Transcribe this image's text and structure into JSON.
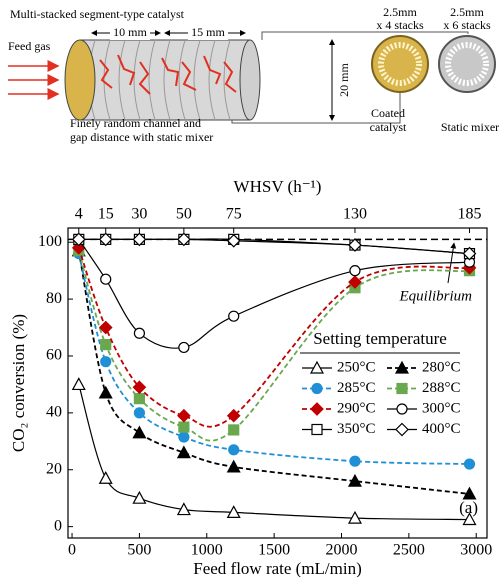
{
  "schematic": {
    "title": "Multi-stacked segment-type catalyst",
    "feed_gas": "Feed gas",
    "dim_10": "10 mm",
    "dim_15": "15 mm",
    "dim_20": "20 mm",
    "caption": [
      "Finely random channel and",
      "gap distance with static mixer"
    ],
    "coated": {
      "size": "2.5mm",
      "stacks": "x 4 stacks",
      "label": [
        "Coated",
        "catalyst"
      ]
    },
    "mixer": {
      "size": "2.5mm",
      "stacks": "x 6 stacks",
      "label": "Static mixer"
    }
  },
  "chart_data": {
    "type": "line",
    "x_label": "Feed flow rate (mL/min)",
    "y_label": "CO₂ conversion (%)",
    "x2_label": "WHSV (h⁻¹)",
    "legend_title": "Setting temperature",
    "annotation": "(a)",
    "equilibrium": {
      "label": "Equilibrium",
      "value": 101
    },
    "x": [
      50,
      250,
      500,
      830,
      1200,
      2100,
      2950
    ],
    "xlim": [
      -30,
      3080
    ],
    "xticks": [
      0,
      500,
      1000,
      1500,
      2000,
      2500,
      3000
    ],
    "x2ticks": [
      {
        "value": 50,
        "label": "4"
      },
      {
        "value": 250,
        "label": "15"
      },
      {
        "value": 500,
        "label": "30"
      },
      {
        "value": 830,
        "label": "50"
      },
      {
        "value": 1200,
        "label": "75"
      },
      {
        "value": 2100,
        "label": "130"
      },
      {
        "value": 2950,
        "label": "185"
      }
    ],
    "ylim": [
      -4,
      105
    ],
    "yticks": [
      0,
      20,
      40,
      60,
      80,
      100
    ],
    "series": [
      {
        "name": "250°C",
        "color": "#000000",
        "marker": "triangle",
        "filled": false,
        "dashed": false,
        "values": [
          50,
          17,
          10,
          6,
          5,
          3,
          2.5
        ]
      },
      {
        "name": "280°C",
        "color": "#000000",
        "marker": "triangle",
        "filled": true,
        "dashed": true,
        "values": [
          97,
          47,
          33,
          26,
          21,
          16,
          11.5
        ]
      },
      {
        "name": "285°C",
        "color": "#1f8fd6",
        "marker": "circle",
        "filled": true,
        "dashed": true,
        "values": [
          96,
          58,
          40,
          31.5,
          27,
          23,
          22
        ]
      },
      {
        "name": "288°C",
        "color": "#6aa84f",
        "marker": "square",
        "filled": true,
        "dashed": true,
        "values": [
          97,
          64,
          45,
          35,
          34,
          84,
          90
        ]
      },
      {
        "name": "290°C",
        "color": "#c00000",
        "marker": "diamond",
        "filled": true,
        "dashed": true,
        "values": [
          98,
          70,
          49,
          39,
          39,
          86,
          91
        ]
      },
      {
        "name": "300°C",
        "color": "#000000",
        "marker": "circle",
        "filled": false,
        "dashed": false,
        "values": [
          101,
          87,
          68,
          63,
          74,
          90,
          93
        ]
      },
      {
        "name": "350°C",
        "color": "#000000",
        "marker": "square",
        "filled": false,
        "dashed": false,
        "values": [
          101,
          101,
          101,
          101,
          101,
          99,
          96
        ]
      },
      {
        "name": "400°C",
        "color": "#000000",
        "marker": "diamond",
        "filled": false,
        "dashed": false,
        "values": [
          101,
          101,
          101,
          101,
          100.5,
          99,
          96
        ]
      }
    ]
  }
}
